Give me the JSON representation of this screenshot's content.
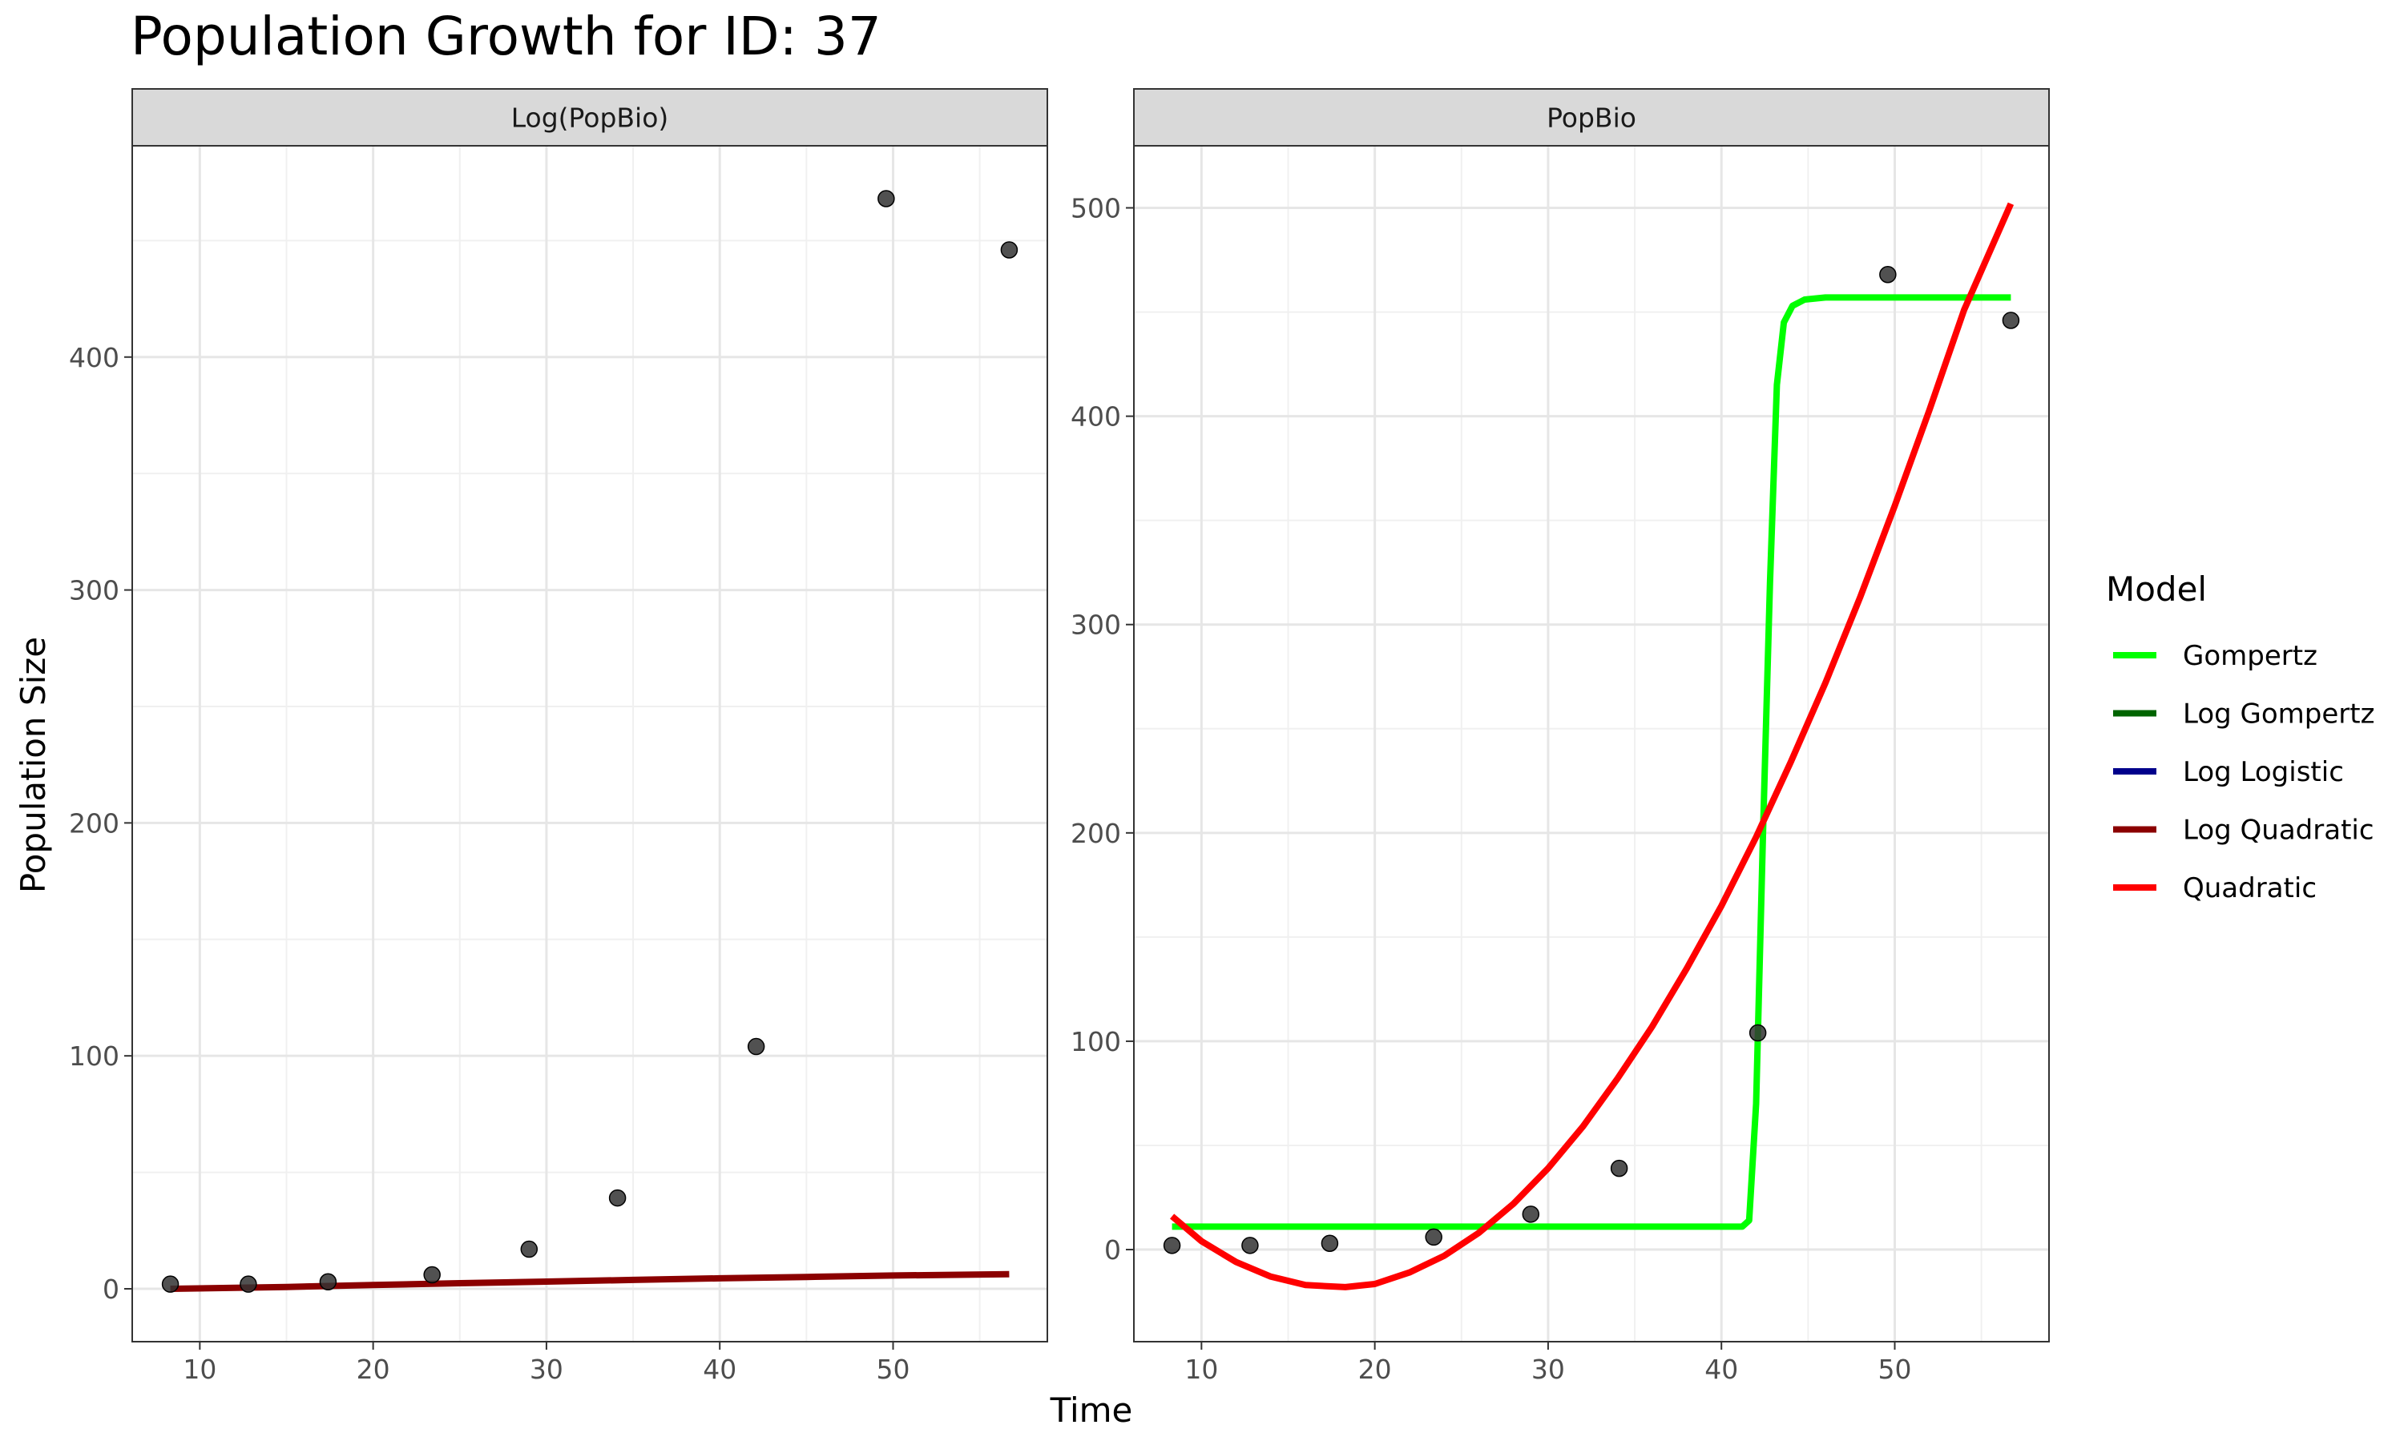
{
  "chart_data": {
    "type": "line",
    "title": "Population Growth for ID: 37",
    "xlabel": "Time",
    "ylabel": "Population Size",
    "grid": true,
    "legend": {
      "title": "Model",
      "position": "right",
      "entries": [
        {
          "label": "Gompertz",
          "color": "#00FF00"
        },
        {
          "label": "Log Gompertz",
          "color": "#006400"
        },
        {
          "label": "Log Logistic",
          "color": "#00008B"
        },
        {
          "label": "Log Quadratic",
          "color": "#8B0000"
        },
        {
          "label": "Quadratic",
          "color": "#FF0000"
        }
      ]
    },
    "points_color": "#333333",
    "points": {
      "x": [
        8.3,
        12.8,
        17.4,
        23.4,
        29.0,
        34.1,
        42.1,
        49.6,
        56.7
      ],
      "y": [
        2,
        2,
        3,
        6,
        17,
        39,
        104,
        468,
        446
      ]
    },
    "panels": [
      {
        "strip": "Log(PopBio)",
        "xlim": [
          6.1,
          58.9
        ],
        "ylim": [
          -22.7,
          490.7
        ],
        "x_ticks": [
          10,
          20,
          30,
          40,
          50
        ],
        "y_ticks": [
          0,
          100,
          200,
          300,
          400
        ],
        "series": [
          {
            "model": "Log Quadratic",
            "color": "#8B0000",
            "x": [
              8.3,
              15,
              20,
              25,
              30,
              35,
              40,
              45,
              50,
              56.7
            ],
            "y": [
              0,
              0.8,
              1.6,
              2.4,
              3.1,
              3.8,
              4.5,
              5.1,
              5.7,
              6.3
            ]
          }
        ]
      },
      {
        "strip": "PopBio",
        "xlim": [
          6.1,
          58.9
        ],
        "ylim": [
          -44.2,
          529.8
        ],
        "x_ticks": [
          10,
          20,
          30,
          40,
          50
        ],
        "y_ticks": [
          0,
          100,
          200,
          300,
          400,
          500
        ],
        "series": [
          {
            "model": "Gompertz",
            "color": "#00FF00",
            "x": [
              8.3,
              41.2,
              41.6,
              42.0,
              42.4,
              42.8,
              43.2,
              43.6,
              44.1,
              44.8,
              46.0,
              56.7
            ],
            "y": [
              11,
              11,
              14,
              70,
              200,
              320,
              415,
              445,
              453,
              456,
              457,
              457
            ]
          },
          {
            "model": "Quadratic",
            "color": "#FF0000",
            "x": [
              8.3,
              10,
              12,
              14,
              16,
              18.3,
              20,
              22,
              24,
              26,
              28,
              30,
              32,
              34,
              36,
              38,
              40,
              42,
              44,
              46,
              48,
              50,
              52,
              54,
              56.7
            ],
            "y": [
              16,
              4,
              -6,
              -13,
              -17,
              -18,
              -16.5,
              -11,
              -3,
              8,
              22,
              39,
              59,
              82,
              107,
              135,
              165,
              198,
              234,
              272,
              313,
              357,
              403,
              451,
              502
            ]
          }
        ]
      }
    ]
  }
}
